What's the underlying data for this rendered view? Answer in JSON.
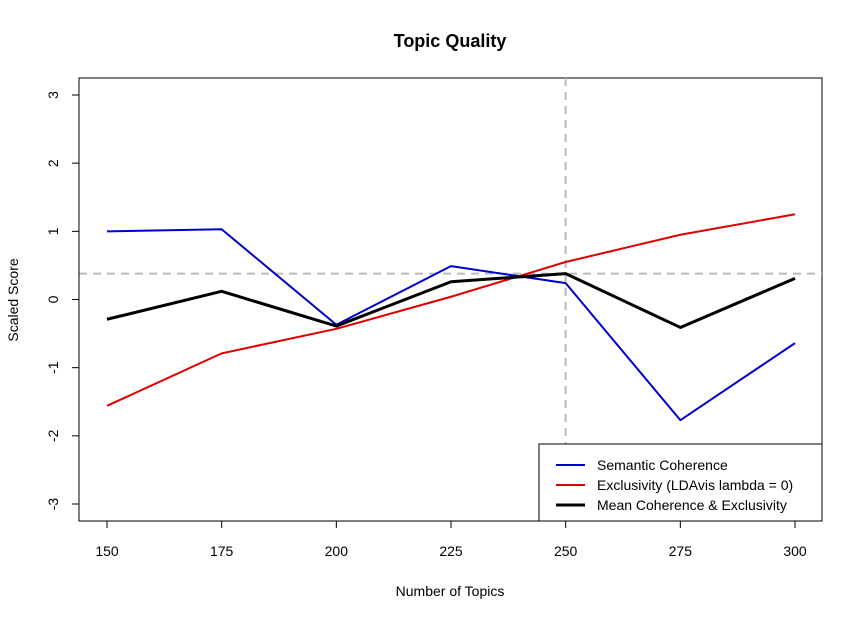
{
  "chart_data": {
    "type": "line",
    "title": "Topic Quality",
    "xlabel": "Number of Topics",
    "ylabel": "Scaled Score",
    "x": [
      150,
      175,
      200,
      225,
      250,
      275,
      300
    ],
    "xticks": [
      "150",
      "175",
      "200",
      "225",
      "250",
      "275",
      "300"
    ],
    "yticks": [
      "-3",
      "-2",
      "-1",
      "0",
      "1",
      "2",
      "3"
    ],
    "xlim": [
      150,
      300
    ],
    "ylim": [
      -3,
      3
    ],
    "series": [
      {
        "name": "Semantic Coherence",
        "color": "#0000cc",
        "line_weight": "normal",
        "values": [
          1.0,
          1.03,
          -0.37,
          0.49,
          0.24,
          -1.77,
          -0.64
        ]
      },
      {
        "name": "Exclusivity (LDAvis lambda = 0)",
        "color": "#dd0000",
        "line_weight": "normal",
        "values": [
          -1.56,
          -0.79,
          -0.43,
          0.04,
          0.55,
          0.95,
          1.25
        ]
      },
      {
        "name": "Mean Coherence & Exclusivity",
        "color": "#000000",
        "line_weight": "bold",
        "values": [
          -0.29,
          0.12,
          -0.39,
          0.26,
          0.38,
          -0.41,
          0.31
        ]
      }
    ],
    "reference_lines": {
      "vertical_x": 250,
      "horizontal_y": 0.38,
      "color": "#bbbbbb",
      "style": "dashed"
    },
    "legend_position": "bottom-right",
    "grid": false
  }
}
